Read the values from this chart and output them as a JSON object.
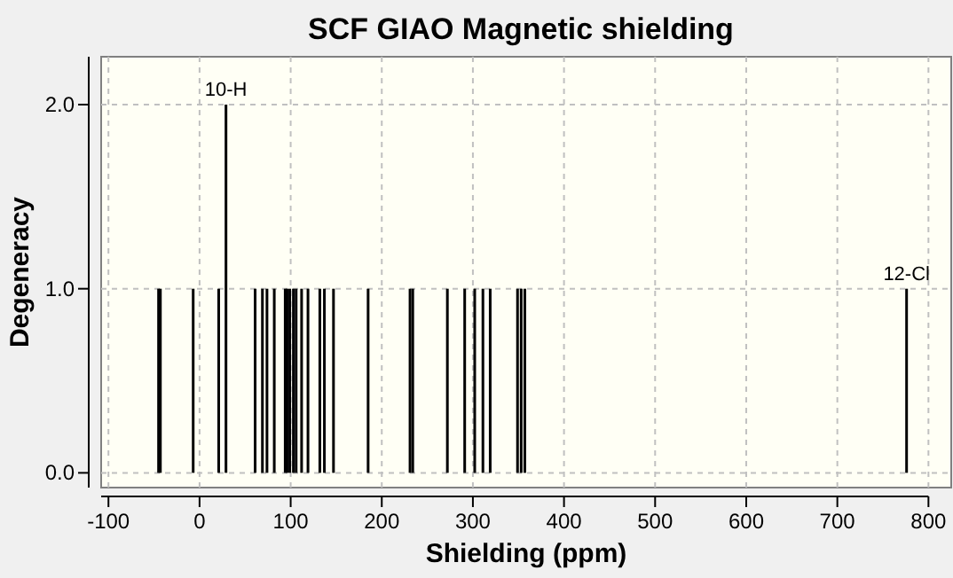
{
  "chart_data": {
    "type": "bar",
    "title": "SCF GIAO Magnetic shielding",
    "xlabel": "Shielding (ppm)",
    "ylabel": "Degeneracy",
    "x": [
      -45,
      -43,
      -7,
      21,
      29,
      61,
      69,
      74,
      82,
      94,
      96,
      99,
      103,
      106,
      112,
      119,
      132,
      137,
      147,
      185,
      231,
      234,
      272,
      291,
      302,
      311,
      319,
      349,
      353,
      357,
      776
    ],
    "values": [
      1,
      1,
      1,
      1,
      2,
      1,
      1,
      1,
      1,
      1,
      1,
      1,
      1,
      1,
      1,
      1,
      1,
      1,
      1,
      1,
      1,
      1,
      1,
      1,
      1,
      1,
      1,
      1,
      1,
      1,
      1
    ],
    "color": "#000000",
    "xlim": [
      -108,
      825
    ],
    "xticks": [
      -100,
      0,
      100,
      200,
      300,
      400,
      500,
      600,
      700,
      800
    ],
    "ylim": [
      -0.08,
      2.26
    ],
    "yticks": [
      {
        "value": 0,
        "label": "0.0"
      },
      {
        "value": 1,
        "label": "1.0"
      },
      {
        "value": 2,
        "label": "2.0"
      }
    ],
    "grid": true,
    "annotations": [
      {
        "text": "10-H",
        "x": 29,
        "y": 2
      },
      {
        "text": "12-Cl",
        "x": 776,
        "y": 1
      }
    ]
  }
}
